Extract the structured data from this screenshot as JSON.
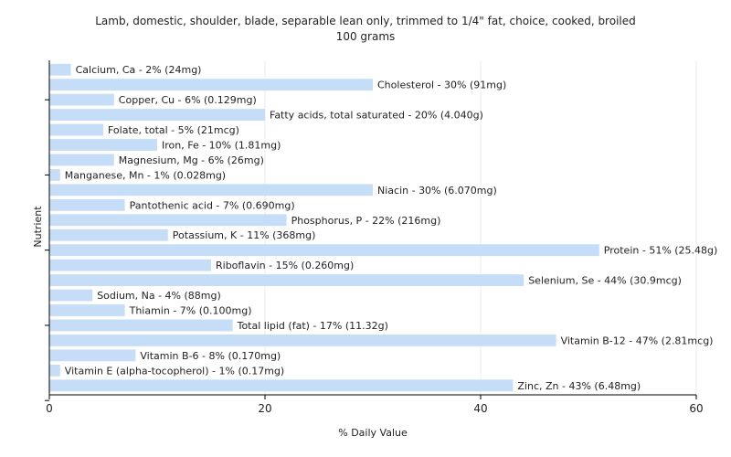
{
  "chart_data": {
    "type": "bar",
    "orientation": "horizontal",
    "title": "Lamb, domestic, shoulder, blade, separable lean only, trimmed to 1/4\" fat, choice, cooked, broiled",
    "subtitle": "100 grams",
    "xlabel": "% Daily Value",
    "ylabel": "Nutrient",
    "xlim": [
      0,
      60
    ],
    "xticks": [
      "0",
      "20",
      "40",
      "60"
    ],
    "grid": true,
    "bar_color": "#c6ddf7",
    "categories": [
      "Calcium, Ca",
      "Cholesterol",
      "Copper, Cu",
      "Fatty acids, total saturated",
      "Folate, total",
      "Iron, Fe",
      "Magnesium, Mg",
      "Manganese, Mn",
      "Niacin",
      "Pantothenic acid",
      "Phosphorus, P",
      "Potassium, K",
      "Protein",
      "Riboflavin",
      "Selenium, Se",
      "Sodium, Na",
      "Thiamin",
      "Total lipid (fat)",
      "Vitamin B-12",
      "Vitamin B-6",
      "Vitamin E (alpha-tocopherol)",
      "Zinc, Zn"
    ],
    "values": [
      2,
      30,
      6,
      20,
      5,
      10,
      6,
      1,
      30,
      7,
      22,
      11,
      51,
      15,
      44,
      4,
      7,
      17,
      47,
      8,
      1,
      43
    ],
    "labels": [
      "Calcium, Ca - 2% (24mg)",
      "Cholesterol - 30% (91mg)",
      "Copper, Cu - 6% (0.129mg)",
      "Fatty acids, total saturated - 20% (4.040g)",
      "Folate, total - 5% (21mcg)",
      "Iron, Fe - 10% (1.81mg)",
      "Magnesium, Mg - 6% (26mg)",
      "Manganese, Mn - 1% (0.028mg)",
      "Niacin - 30% (6.070mg)",
      "Pantothenic acid - 7% (0.690mg)",
      "Phosphorus, P - 22% (216mg)",
      "Potassium, K - 11% (368mg)",
      "Protein - 51% (25.48g)",
      "Riboflavin - 15% (0.260mg)",
      "Selenium, Se - 44% (30.9mcg)",
      "Sodium, Na - 4% (88mg)",
      "Thiamin - 7% (0.100mg)",
      "Total lipid (fat) - 17% (11.32g)",
      "Vitamin B-12 - 47% (2.81mcg)",
      "Vitamin B-6 - 8% (0.170mg)",
      "Vitamin E (alpha-tocopherol) - 1% (0.17mg)",
      "Zinc, Zn - 43% (6.48mg)"
    ]
  }
}
